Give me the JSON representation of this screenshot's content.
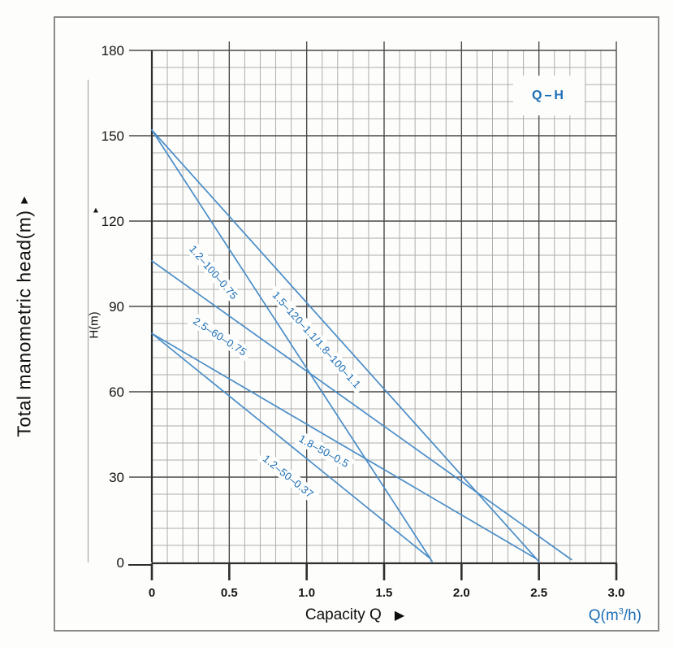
{
  "colors": {
    "accent_blue": "#1a6db6",
    "curve_blue": "#4a8dc8",
    "grid_minor": "#adadad",
    "grid_major": "#4a4a4a",
    "axis_dark": "#2e2e2e",
    "border_gray": "#8a8a8a",
    "background": "#fdfdfb"
  },
  "outer_axis_title": {
    "text": "Total manometric head(m)",
    "arrow": "▲"
  },
  "inner_axis": {
    "h_label": "H(m)",
    "marker": "▲"
  },
  "legend": {
    "label": "Q–H"
  },
  "y_axis": {
    "ticks": [
      "180",
      "150",
      "120",
      "90",
      "60",
      "30",
      "0"
    ]
  },
  "x_axis": {
    "title": "Capacity Q",
    "title_arrow": "▶",
    "unit_prefix": "Q(m",
    "unit_sup": "3",
    "unit_suffix": "/h)",
    "ticks": [
      "0",
      "0.5",
      "1.0",
      "1.5",
      "2.0",
      "2.5",
      "3.0"
    ]
  },
  "chart_data": {
    "type": "line",
    "title": "Q–H",
    "xlabel": "Capacity Q (m³/h)",
    "ylabel": "Total manometric head H(m)",
    "xlim": [
      0,
      3.0
    ],
    "ylim": [
      0,
      180
    ],
    "x_major_step": 0.5,
    "x_minor_step": 0.1,
    "y_major_step": 30,
    "y_minor_step": 6,
    "grid": "on",
    "legend_position": "top-right",
    "series": [
      {
        "name": "1.2–100–0.75",
        "points": [
          [
            0,
            152
          ],
          [
            1.81,
            0.4
          ]
        ]
      },
      {
        "name": "1.5–120–1.1/1.8–100–1.1",
        "points": [
          [
            0,
            152
          ],
          [
            2.5,
            0.3
          ]
        ]
      },
      {
        "name": "2.5–60–0.75",
        "points": [
          [
            0,
            106
          ],
          [
            2.71,
            1.0
          ]
        ]
      },
      {
        "name": "1.8–50–0.5",
        "points": [
          [
            0,
            80.5
          ],
          [
            2.48,
            1.4
          ]
        ]
      },
      {
        "name": "1.2–50–0.37",
        "points": [
          [
            0,
            80.5
          ],
          [
            1.8,
            1.3
          ]
        ]
      }
    ]
  }
}
